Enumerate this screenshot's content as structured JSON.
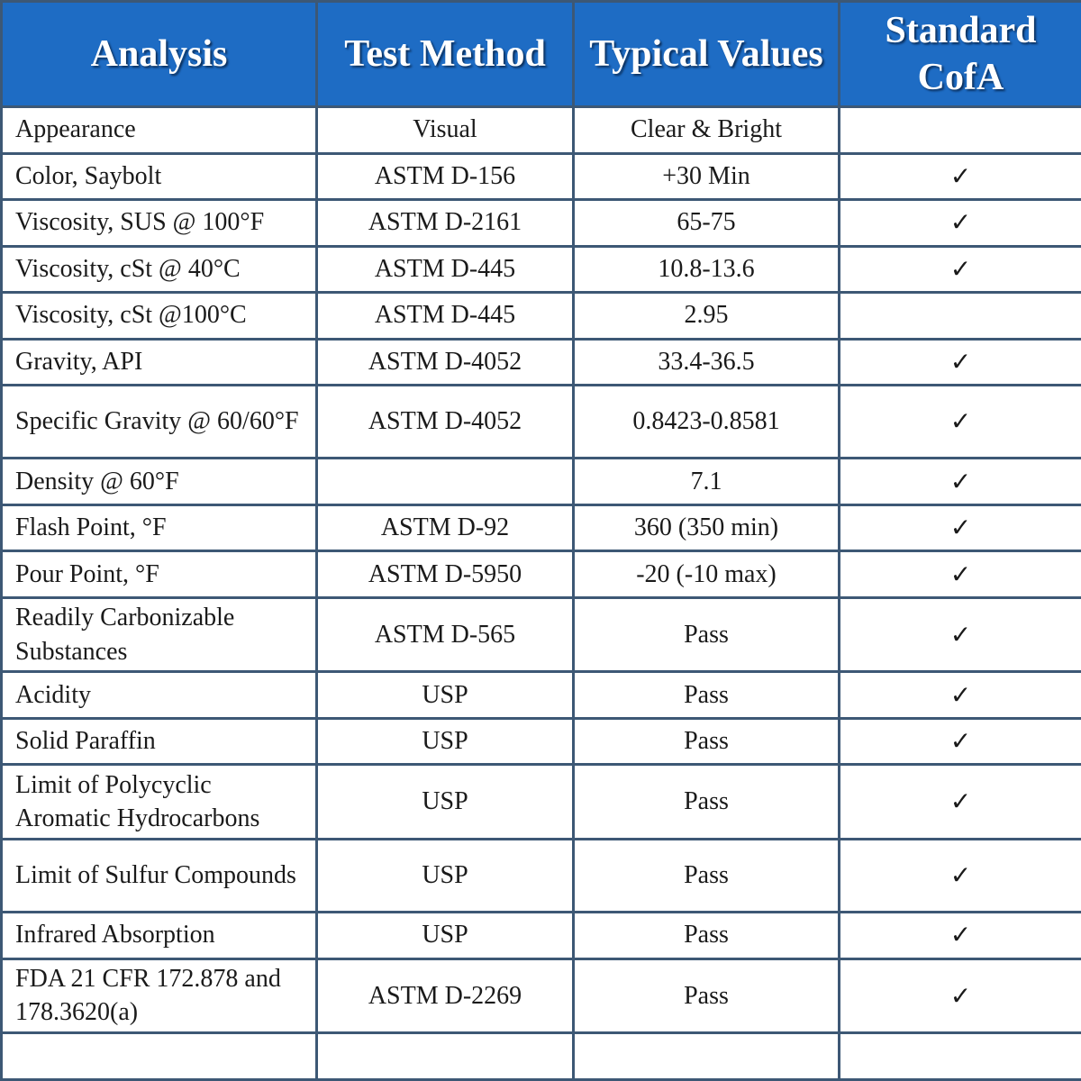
{
  "table": {
    "header": [
      "Analysis",
      "Test Method",
      "Typical Values",
      "Standard CofA"
    ],
    "rows": [
      [
        "Appearance",
        "Visual",
        "Clear & Bright",
        null
      ],
      [
        "Color, Saybolt",
        "ASTM  D-156",
        "+30 Min",
        "✓"
      ],
      [
        "Viscosity, SUS @ 100°F",
        "ASTM D-2161",
        "65-75",
        "✓"
      ],
      [
        "Viscosity, cSt @ 40°C",
        "ASTM D-445",
        "10.8-13.6",
        "✓"
      ],
      [
        "Viscosity, cSt @100°C",
        "ASTM D-445",
        "2.95",
        null
      ],
      [
        "Gravity, API",
        "ASTM D-4052",
        "33.4-36.5",
        "✓"
      ],
      [
        "Specific Gravity @ 60/60°F",
        "ASTM D-4052",
        "0.8423-0.8581",
        "✓"
      ],
      [
        "Density @ 60°F",
        null,
        "7.1",
        "✓"
      ],
      [
        "Flash Point, °F",
        "ASTM D-92",
        "360 (350 min)",
        "✓"
      ],
      [
        "Pour Point, °F",
        "ASTM D-5950",
        "-20 (-10 max)",
        "✓"
      ],
      [
        "Readily Carbonizable Substances",
        "ASTM D-565",
        "Pass",
        "✓"
      ],
      [
        "Acidity",
        "USP",
        "Pass",
        "✓"
      ],
      [
        "Solid Paraffin",
        "USP",
        "Pass",
        "✓"
      ],
      [
        "Limit of Polycyclic Aromatic Hydrocarbons",
        "USP",
        "Pass",
        "✓"
      ],
      [
        "Limit of Sulfur Compounds",
        "USP",
        "Pass",
        "✓"
      ],
      [
        "Infrared Absorption",
        "USP",
        "Pass",
        "✓"
      ],
      [
        "FDA 21 CFR 172.878 and 178.3620(a)",
        "ASTM D-2269",
        "Pass",
        "✓"
      ]
    ]
  }
}
